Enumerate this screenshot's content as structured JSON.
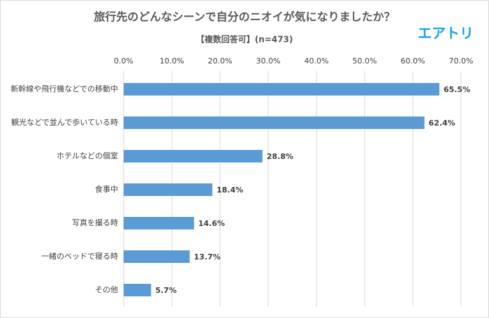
{
  "logo": "エアトリ",
  "chart_data": {
    "type": "bar",
    "orientation": "horizontal",
    "title": "旅行先のどんなシーンで自分のニオイが気になりましたか？",
    "subtitle": "【複数回答可】(n=473)",
    "categories": [
      "新幹線や飛行機などでの移動中",
      "観光などで並んで歩いている時",
      "ホテルなどの個室",
      "食事中",
      "写真を撮る時",
      "一緒のベッドで寝る時",
      "その他"
    ],
    "values": [
      65.5,
      62.4,
      28.8,
      18.4,
      14.6,
      13.7,
      5.7
    ],
    "value_labels": [
      "65.5%",
      "62.4%",
      "28.8%",
      "18.4%",
      "14.6%",
      "13.7%",
      "5.7%"
    ],
    "color": "#5b9bd5",
    "xlim": [
      0,
      70
    ],
    "xticks": [
      {
        "value": 0,
        "label": "0.0%"
      },
      {
        "value": 10,
        "label": "10.0%"
      },
      {
        "value": 20,
        "label": "20.0%"
      },
      {
        "value": 30,
        "label": "30.0%"
      },
      {
        "value": 40,
        "label": "40.0%"
      },
      {
        "value": 50,
        "label": "50.0%"
      },
      {
        "value": 60,
        "label": "60.0%"
      },
      {
        "value": 70,
        "label": "70.0%"
      }
    ],
    "grid": true
  }
}
